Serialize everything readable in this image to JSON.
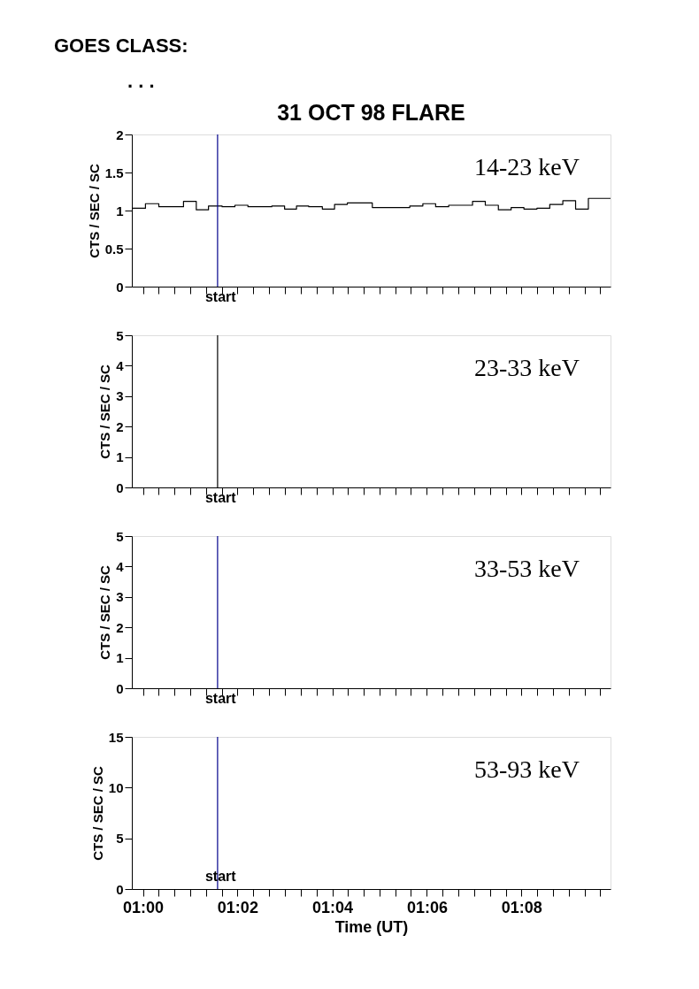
{
  "chart_data": [
    {
      "type": "step",
      "title": "31 OCT 98 FLARE",
      "ylabel": "CTS / SEC / SC",
      "tick_labels": "y",
      "grid": false,
      "annotations": [
        "GOES CLASS:",
        ". . .",
        "14-23 keV"
      ],
      "series": [
        {
          "color": "#000000",
          "x": [
            0.9961,
            1.0009,
            1.0056,
            1.0143,
            1.0188,
            1.0231,
            1.0279,
            1.0324,
            1.037,
            1.0454,
            1.0499,
            1.0541,
            1.0584,
            1.0632,
            1.0675,
            1.072,
            1.0808,
            1.094,
            1.0986,
            1.1031,
            1.1077,
            1.1161,
            1.1206,
            1.1252,
            1.1297,
            1.1342,
            1.1388,
            1.1433,
            1.1479,
            1.1524,
            1.1569,
            1.1647
          ],
          "values": [
            1.03,
            1.09,
            1.05,
            1.12,
            1.01,
            1.06,
            1.05,
            1.07,
            1.05,
            1.06,
            1.02,
            1.06,
            1.05,
            1.02,
            1.08,
            1.1,
            1.04,
            1.06,
            1.09,
            1.05,
            1.07,
            1.12,
            1.07,
            1.01,
            1.04,
            1.02,
            1.03,
            1.08,
            1.13,
            1.02,
            1.16,
            1.16
          ]
        }
      ],
      "xlim": [
        0.9961,
        1.1647
      ],
      "ylim": [
        0,
        2
      ],
      "yticks": [
        0,
        0.5,
        1,
        1.5,
        2
      ],
      "xticks": [
        {
          "value": 1.0,
          "label": null
        },
        {
          "value": 1.0056,
          "label": null
        },
        {
          "value": 1.0111,
          "label": null
        },
        {
          "value": 1.0167,
          "label": null
        },
        {
          "value": 1.0222,
          "label": null
        },
        {
          "value": 1.0278,
          "label": null
        },
        {
          "value": 1.0333,
          "label": null
        },
        {
          "value": 1.0389,
          "label": null
        },
        {
          "value": 1.0444,
          "label": null
        },
        {
          "value": 1.05,
          "label": null
        },
        {
          "value": 1.0556,
          "label": null
        },
        {
          "value": 1.0611,
          "label": null
        },
        {
          "value": 1.0667,
          "label": null
        },
        {
          "value": 1.0722,
          "label": null
        },
        {
          "value": 1.0778,
          "label": null
        },
        {
          "value": 1.0833,
          "label": null
        },
        {
          "value": 1.0889,
          "label": null
        },
        {
          "value": 1.0944,
          "label": null
        },
        {
          "value": 1.1,
          "label": null
        },
        {
          "value": 1.1056,
          "label": null
        },
        {
          "value": 1.1111,
          "label": null
        },
        {
          "value": 1.1167,
          "label": null
        },
        {
          "value": 1.1222,
          "label": null
        },
        {
          "value": 1.1278,
          "label": null
        },
        {
          "value": 1.1333,
          "label": null
        },
        {
          "value": 1.1389,
          "label": null
        },
        {
          "value": 1.1444,
          "label": null
        },
        {
          "value": 1.15,
          "label": null
        },
        {
          "value": 1.1556,
          "label": null
        },
        {
          "value": 1.1611,
          "label": null
        }
      ],
      "ref_lines": [
        {
          "axis": "x",
          "value": 1.0263,
          "label": "start",
          "color": "#00008b"
        }
      ]
    },
    {
      "type": "line",
      "ylabel": "CTS / SEC / SC",
      "tick_labels": "y",
      "grid": false,
      "annotations": [
        "23-33 keV"
      ],
      "xlim": [
        0.9961,
        1.1647
      ],
      "ylim": [
        0,
        5
      ],
      "yticks": [
        0,
        1,
        2,
        3,
        4,
        5
      ],
      "xticks": [
        {
          "value": 1.0,
          "label": null
        },
        {
          "value": 1.0056,
          "label": null
        },
        {
          "value": 1.0111,
          "label": null
        },
        {
          "value": 1.0167,
          "label": null
        },
        {
          "value": 1.0222,
          "label": null
        },
        {
          "value": 1.0278,
          "label": null
        },
        {
          "value": 1.0333,
          "label": null
        },
        {
          "value": 1.0389,
          "label": null
        },
        {
          "value": 1.0444,
          "label": null
        },
        {
          "value": 1.05,
          "label": null
        },
        {
          "value": 1.0556,
          "label": null
        },
        {
          "value": 1.0611,
          "label": null
        },
        {
          "value": 1.0667,
          "label": null
        },
        {
          "value": 1.0722,
          "label": null
        },
        {
          "value": 1.0778,
          "label": null
        },
        {
          "value": 1.0833,
          "label": null
        },
        {
          "value": 1.0889,
          "label": null
        },
        {
          "value": 1.0944,
          "label": null
        },
        {
          "value": 1.1,
          "label": null
        },
        {
          "value": 1.1056,
          "label": null
        },
        {
          "value": 1.1111,
          "label": null
        },
        {
          "value": 1.1167,
          "label": null
        },
        {
          "value": 1.1222,
          "label": null
        },
        {
          "value": 1.1278,
          "label": null
        },
        {
          "value": 1.1333,
          "label": null
        },
        {
          "value": 1.1389,
          "label": null
        },
        {
          "value": 1.1444,
          "label": null
        },
        {
          "value": 1.15,
          "label": null
        },
        {
          "value": 1.1556,
          "label": null
        },
        {
          "value": 1.1611,
          "label": null
        }
      ],
      "ref_lines": [
        {
          "axis": "x",
          "value": 1.0263,
          "label": "start",
          "color": "#000000"
        }
      ]
    },
    {
      "type": "line",
      "ylabel": "CTS / SEC / SC",
      "tick_labels": "y",
      "grid": false,
      "annotations": [
        "33-53 keV"
      ],
      "xlim": [
        0.9961,
        1.1647
      ],
      "ylim": [
        0,
        5
      ],
      "yticks": [
        0,
        1,
        2,
        3,
        4,
        5
      ],
      "xticks": [
        {
          "value": 1.0,
          "label": null
        },
        {
          "value": 1.0056,
          "label": null
        },
        {
          "value": 1.0111,
          "label": null
        },
        {
          "value": 1.0167,
          "label": null
        },
        {
          "value": 1.0222,
          "label": null
        },
        {
          "value": 1.0278,
          "label": null
        },
        {
          "value": 1.0333,
          "label": null
        },
        {
          "value": 1.0389,
          "label": null
        },
        {
          "value": 1.0444,
          "label": null
        },
        {
          "value": 1.05,
          "label": null
        },
        {
          "value": 1.0556,
          "label": null
        },
        {
          "value": 1.0611,
          "label": null
        },
        {
          "value": 1.0667,
          "label": null
        },
        {
          "value": 1.0722,
          "label": null
        },
        {
          "value": 1.0778,
          "label": null
        },
        {
          "value": 1.0833,
          "label": null
        },
        {
          "value": 1.0889,
          "label": null
        },
        {
          "value": 1.0944,
          "label": null
        },
        {
          "value": 1.1,
          "label": null
        },
        {
          "value": 1.1056,
          "label": null
        },
        {
          "value": 1.1111,
          "label": null
        },
        {
          "value": 1.1167,
          "label": null
        },
        {
          "value": 1.1222,
          "label": null
        },
        {
          "value": 1.1278,
          "label": null
        },
        {
          "value": 1.1333,
          "label": null
        },
        {
          "value": 1.1389,
          "label": null
        },
        {
          "value": 1.1444,
          "label": null
        },
        {
          "value": 1.15,
          "label": null
        },
        {
          "value": 1.1556,
          "label": null
        },
        {
          "value": 1.1611,
          "label": null
        }
      ],
      "ref_lines": [
        {
          "axis": "x",
          "value": 1.0263,
          "label": "start",
          "color": "#00008b"
        }
      ]
    },
    {
      "type": "line",
      "ylabel": "CTS / SEC / SC",
      "xlabel": "Time (UT)",
      "grid": false,
      "annotations": [
        "53-93 keV"
      ],
      "xlim": [
        0.9961,
        1.1647
      ],
      "ylim": [
        0,
        15
      ],
      "yticks": [
        0,
        5,
        10,
        15
      ],
      "xticks": [
        {
          "value": 1.0,
          "label": "01:00"
        },
        {
          "value": 1.0056,
          "label": null
        },
        {
          "value": 1.0111,
          "label": null
        },
        {
          "value": 1.0167,
          "label": null
        },
        {
          "value": 1.0222,
          "label": null
        },
        {
          "value": 1.0278,
          "label": null
        },
        {
          "value": 1.0333,
          "label": "01:02"
        },
        {
          "value": 1.0389,
          "label": null
        },
        {
          "value": 1.0444,
          "label": null
        },
        {
          "value": 1.05,
          "label": null
        },
        {
          "value": 1.0556,
          "label": null
        },
        {
          "value": 1.0611,
          "label": null
        },
        {
          "value": 1.0667,
          "label": "01:04"
        },
        {
          "value": 1.0722,
          "label": null
        },
        {
          "value": 1.0778,
          "label": null
        },
        {
          "value": 1.0833,
          "label": null
        },
        {
          "value": 1.0889,
          "label": null
        },
        {
          "value": 1.0944,
          "label": null
        },
        {
          "value": 1.1,
          "label": "01:06"
        },
        {
          "value": 1.1056,
          "label": null
        },
        {
          "value": 1.1111,
          "label": null
        },
        {
          "value": 1.1167,
          "label": null
        },
        {
          "value": 1.1222,
          "label": null
        },
        {
          "value": 1.1278,
          "label": null
        },
        {
          "value": 1.1333,
          "label": "01:08"
        },
        {
          "value": 1.1389,
          "label": null
        },
        {
          "value": 1.1444,
          "label": null
        },
        {
          "value": 1.15,
          "label": null
        },
        {
          "value": 1.1556,
          "label": null
        },
        {
          "value": 1.1611,
          "label": null
        }
      ],
      "ref_lines": [
        {
          "axis": "x",
          "value": 1.0263,
          "label": "start",
          "color": "#00008b"
        }
      ]
    }
  ]
}
